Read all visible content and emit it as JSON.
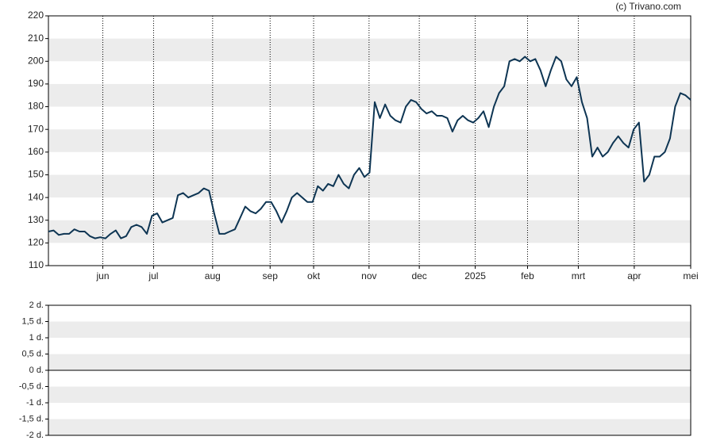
{
  "chart_data": [
    {
      "type": "line",
      "source": "(c) Trivano.com",
      "xlim": [
        0,
        124
      ],
      "xticks": [
        {
          "value": 10.5,
          "label": "jun"
        },
        {
          "value": 20.3,
          "label": "jul"
        },
        {
          "value": 31.7,
          "label": "aug"
        },
        {
          "value": 42.8,
          "label": "sep"
        },
        {
          "value": 51.2,
          "label": "okt"
        },
        {
          "value": 61.9,
          "label": "nov"
        },
        {
          "value": 71.6,
          "label": "dec"
        },
        {
          "value": 82.4,
          "label": "2025"
        },
        {
          "value": 92.5,
          "label": "feb"
        },
        {
          "value": 102.3,
          "label": "mrt"
        },
        {
          "value": 113.1,
          "label": "apr"
        },
        {
          "value": 124,
          "label": "mei"
        }
      ],
      "ylim": [
        110,
        220
      ],
      "yticks": [
        110,
        120,
        130,
        140,
        150,
        160,
        170,
        180,
        190,
        200,
        210,
        220
      ],
      "color": "#0e3553",
      "band_color": "#ececec",
      "grid": true,
      "values": [
        125,
        125.5,
        123.5,
        124,
        124,
        126,
        125,
        125,
        123,
        122,
        122.5,
        122,
        124,
        125.5,
        122,
        123,
        127,
        128,
        127,
        124,
        132,
        133,
        129,
        130,
        131,
        141,
        142,
        140,
        141,
        142,
        144,
        143,
        133,
        124,
        124,
        125,
        126,
        131,
        136,
        134,
        133,
        135,
        138,
        138,
        134,
        129,
        134,
        140,
        142,
        140,
        138,
        138,
        145,
        143,
        146,
        145,
        150,
        146,
        144,
        150,
        153,
        149,
        151,
        182,
        175,
        181,
        176,
        174,
        173,
        180,
        183,
        182,
        179,
        177,
        178,
        176,
        176,
        175,
        169,
        174,
        176,
        174,
        173,
        175,
        178,
        171,
        180,
        186,
        189,
        200,
        201,
        200,
        202,
        200,
        201,
        196,
        189,
        196,
        202,
        200,
        192,
        189,
        193,
        182,
        175,
        158,
        162,
        158,
        160,
        164,
        167,
        164,
        162,
        170,
        173,
        147,
        150,
        158,
        158,
        160,
        166,
        180,
        186,
        185,
        183
      ]
    },
    {
      "type": "bar",
      "ylim": [
        -2,
        2
      ],
      "band_color": "#ececec",
      "yticks": [
        {
          "value": 2,
          "label": "2 d."
        },
        {
          "value": 1.5,
          "label": "1,5 d."
        },
        {
          "value": 1,
          "label": "1 d."
        },
        {
          "value": 0.5,
          "label": "0,5 d."
        },
        {
          "value": 0,
          "label": "0 d."
        },
        {
          "value": -0.5,
          "label": "-0,5 d."
        },
        {
          "value": -1,
          "label": "-1 d."
        },
        {
          "value": -1.5,
          "label": "-1,5 d."
        },
        {
          "value": -2,
          "label": "-2 d."
        }
      ]
    }
  ]
}
